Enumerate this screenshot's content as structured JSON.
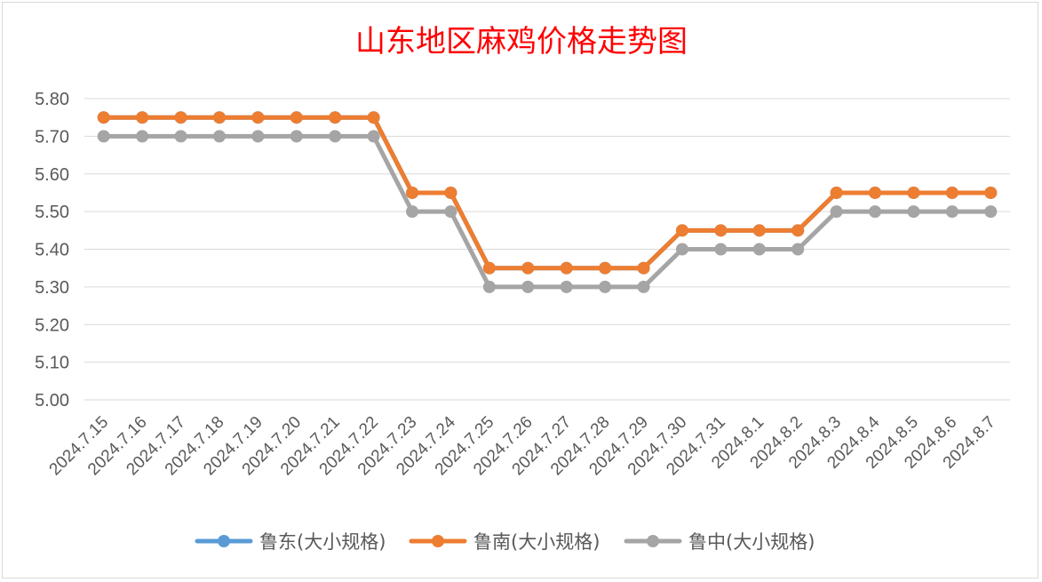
{
  "chart_data": {
    "type": "line",
    "title": "山东地区麻鸡价格走势图",
    "xlabel": "",
    "ylabel": "",
    "ylim": [
      5.0,
      5.8
    ],
    "yticks": [
      "5.80",
      "5.70",
      "5.60",
      "5.50",
      "5.40",
      "5.30",
      "5.20",
      "5.10",
      "5.00"
    ],
    "grid": true,
    "legend_position": "bottom",
    "categories": [
      "2024.7.15",
      "2024.7.16",
      "2024.7.17",
      "2024.7.18",
      "2024.7.19",
      "2024.7.20",
      "2024.7.21",
      "2024.7.22",
      "2024.7.23",
      "2024.7.24",
      "2024.7.25",
      "2024.7.26",
      "2024.7.27",
      "2024.7.28",
      "2024.7.29",
      "2024.7.30",
      "2024.7.31",
      "2024.8.1",
      "2024.8.2",
      "2024.8.3",
      "2024.8.4",
      "2024.8.5",
      "2024.8.6",
      "2024.8.7"
    ],
    "series": [
      {
        "name": "鲁东(大小规格)",
        "color": "#5b9bd5",
        "values": [
          5.75,
          5.75,
          5.75,
          5.75,
          5.75,
          5.75,
          5.75,
          5.75,
          5.55,
          5.55,
          5.35,
          5.35,
          5.35,
          5.35,
          5.35,
          5.45,
          5.45,
          5.45,
          5.45,
          5.55,
          5.55,
          5.55,
          5.55,
          5.55
        ]
      },
      {
        "name": "鲁南(大小规格)",
        "color": "#ed7d31",
        "values": [
          5.75,
          5.75,
          5.75,
          5.75,
          5.75,
          5.75,
          5.75,
          5.75,
          5.55,
          5.55,
          5.35,
          5.35,
          5.35,
          5.35,
          5.35,
          5.45,
          5.45,
          5.45,
          5.45,
          5.55,
          5.55,
          5.55,
          5.55,
          5.55
        ]
      },
      {
        "name": "鲁中(大小规格)",
        "color": "#a5a5a5",
        "values": [
          5.7,
          5.7,
          5.7,
          5.7,
          5.7,
          5.7,
          5.7,
          5.7,
          5.5,
          5.5,
          5.3,
          5.3,
          5.3,
          5.3,
          5.3,
          5.4,
          5.4,
          5.4,
          5.4,
          5.5,
          5.5,
          5.5,
          5.5,
          5.5
        ]
      }
    ]
  }
}
